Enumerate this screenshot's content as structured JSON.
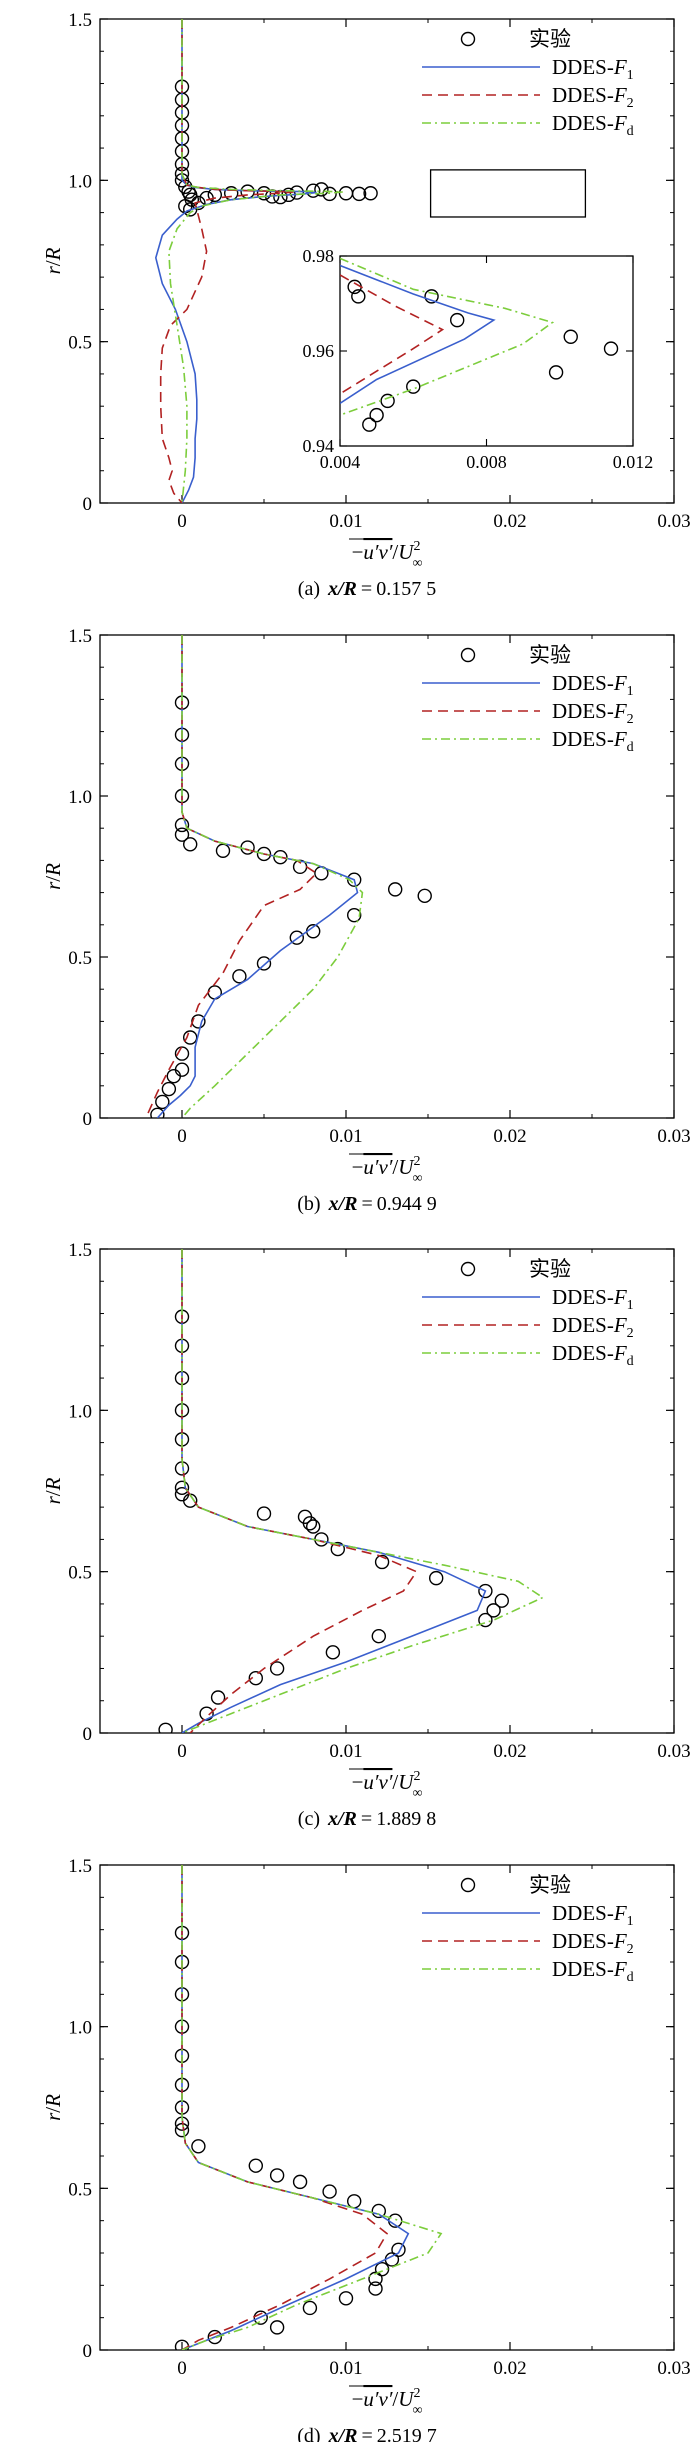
{
  "figure": {
    "legend": {
      "experiment": "实验",
      "f1": {
        "base": "DDES-",
        "var": "F",
        "sub": "1"
      },
      "f2": {
        "base": "DDES-",
        "var": "F",
        "sub": "2"
      },
      "fd": {
        "base": "DDES-",
        "var": "F",
        "sub": "d"
      }
    },
    "ylabel": {
      "a": "r",
      "slash": "/",
      "b": "R"
    },
    "xlabel": {
      "minus": "−",
      "uv": "u′v′",
      "slash": "/",
      "U": "U",
      "sup": "2",
      "sub": "∞"
    },
    "colors": {
      "f1": "#3a5fcd",
      "f2": "#b22222",
      "fd": "#7ccd3c",
      "axis": "#000000"
    }
  },
  "chart_data": [
    {
      "type": "line",
      "id": "a",
      "caption": {
        "label": "(a)",
        "var": "x/R",
        "eq": "=",
        "value": "0.157 5"
      },
      "xlim": [
        -0.005,
        0.03
      ],
      "ylim": [
        0,
        1.5
      ],
      "xticks": [
        "0",
        "0.01",
        "0.02",
        "0.03"
      ],
      "yticks": [
        "0",
        "0.5",
        "1.0",
        "1.5"
      ],
      "series": [
        {
          "name": "实验",
          "kind": "marker",
          "x": [
            0,
            0,
            0,
            0,
            0,
            0,
            0,
            0,
            0,
            0.0002,
            0.0004,
            0.0005,
            0.0006,
            0.0002,
            0.0005,
            0.001,
            0.0015,
            0.002,
            0.003,
            0.004,
            0.005,
            0.0055,
            0.006,
            0.0065,
            0.007,
            0.008,
            0.0085,
            0.009,
            0.01,
            0.0108,
            0.0115
          ],
          "y": [
            1.29,
            1.25,
            1.21,
            1.17,
            1.13,
            1.09,
            1.05,
            1.02,
            1.0,
            0.98,
            0.965,
            0.955,
            0.94,
            0.92,
            0.91,
            0.93,
            0.945,
            0.955,
            0.96,
            0.965,
            0.96,
            0.95,
            0.948,
            0.955,
            0.962,
            0.968,
            0.972,
            0.958,
            0.96,
            0.958,
            0.96
          ]
        },
        {
          "name": "DDES-F1",
          "kind": "solid",
          "x": [
            0,
            0,
            0,
            0,
            0.0003,
            0.0008,
            0.002,
            0.004,
            0.006,
            0.0075,
            0.0082,
            0.0074,
            0.005,
            0.003,
            0.0015,
            0.0003,
            -0.0003,
            -0.0012,
            -0.0016,
            -0.0012,
            -0.0004,
            0.0003,
            0.0008,
            0.0009,
            0.0009,
            0.0008,
            0.0008,
            0.0007,
            0.0004,
            0
          ],
          "y": [
            1.5,
            1.2,
            1.05,
            1.0,
            0.985,
            0.978,
            0.972,
            0.968,
            0.966,
            0.965,
            0.962,
            0.958,
            0.95,
            0.94,
            0.925,
            0.905,
            0.88,
            0.83,
            0.76,
            0.68,
            0.6,
            0.5,
            0.4,
            0.32,
            0.26,
            0.2,
            0.14,
            0.08,
            0.04,
            0
          ]
        },
        {
          "name": "DDES-F2",
          "kind": "dashed",
          "x": [
            0,
            0,
            0,
            0.0003,
            0.001,
            0.002,
            0.004,
            0.0055,
            0.0068,
            0.006,
            0.004,
            0.002,
            0.0008,
            0.0012,
            0.0015,
            0.0012,
            0.0003,
            -0.0007,
            -0.0012,
            -0.0013,
            -0.0013,
            -0.0012,
            -0.0008,
            -0.0006,
            -0.0008,
            -0.0005,
            0
          ],
          "y": [
            1.5,
            1.2,
            1.02,
            0.985,
            0.978,
            0.972,
            0.968,
            0.966,
            0.964,
            0.96,
            0.955,
            0.945,
            0.93,
            0.85,
            0.78,
            0.7,
            0.6,
            0.55,
            0.48,
            0.4,
            0.3,
            0.2,
            0.14,
            0.1,
            0.07,
            0.03,
            0
          ]
        },
        {
          "name": "DDES-Fd",
          "kind": "dashdot",
          "x": [
            0,
            0,
            0,
            0.0003,
            0.001,
            0.003,
            0.006,
            0.0085,
            0.0098,
            0.009,
            0.006,
            0.003,
            0.0012,
            0.0005,
            -0.0003,
            -0.0008,
            -0.0007,
            -0.0003,
            0.0001,
            0.0003,
            0.0003,
            0.0002,
            0
          ],
          "y": [
            1.5,
            1.2,
            1.02,
            0.985,
            0.978,
            0.972,
            0.968,
            0.966,
            0.964,
            0.96,
            0.955,
            0.94,
            0.92,
            0.9,
            0.85,
            0.78,
            0.68,
            0.55,
            0.42,
            0.3,
            0.2,
            0.1,
            0
          ]
        }
      ],
      "inset": {
        "xlim": [
          0.004,
          0.012
        ],
        "ylim": [
          0.94,
          0.98
        ],
        "xticks": [
          "0.004",
          "0.008",
          "0.012"
        ],
        "yticks": [
          "0.94",
          "0.96",
          "0.98"
        ],
        "series": [
          {
            "name": "实验",
            "kind": "marker",
            "x": [
              0.0045,
              0.0048,
              0.005,
              0.0053,
              0.006,
              0.0065,
              0.0072,
              0.0099,
              0.0103,
              0.0114,
              0.0044
            ],
            "y": [
              0.9715,
              0.9445,
              0.9465,
              0.9495,
              0.9525,
              0.9715,
              0.9665,
              0.9555,
              0.963,
              0.9605,
              0.9735
            ]
          },
          {
            "name": "DDES-F1",
            "kind": "solid",
            "x": [
              0.004,
              0.006,
              0.0075,
              0.0082,
              0.0074,
              0.005,
              0.004
            ],
            "y": [
              0.978,
              0.972,
              0.968,
              0.9665,
              0.9625,
              0.954,
              0.949
            ]
          },
          {
            "name": "DDES-F2",
            "kind": "dashed",
            "x": [
              0.004,
              0.0055,
              0.0068,
              0.006,
              0.004
            ],
            "y": [
              0.976,
              0.9695,
              0.9645,
              0.9605,
              0.951
            ]
          },
          {
            "name": "DDES-Fd",
            "kind": "dashdot",
            "x": [
              0.004,
              0.006,
              0.0085,
              0.0098,
              0.009,
              0.006,
              0.004
            ],
            "y": [
              0.9795,
              0.973,
              0.969,
              0.966,
              0.9615,
              0.952,
              0.9465
            ]
          }
        ]
      }
    },
    {
      "type": "line",
      "id": "b",
      "caption": {
        "label": "(b)",
        "var": "x/R",
        "eq": "=",
        "value": "0.944 9"
      },
      "xlim": [
        -0.005,
        0.03
      ],
      "ylim": [
        0,
        1.5
      ],
      "xticks": [
        "0",
        "0.01",
        "0.02",
        "0.03"
      ],
      "yticks": [
        "0",
        "0.5",
        "1.0",
        "1.5"
      ],
      "series": [
        {
          "name": "实验",
          "kind": "marker",
          "x": [
            0,
            0,
            0,
            0,
            0,
            0,
            0.0005,
            0.0025,
            0.004,
            0.005,
            0.006,
            0.0072,
            0.0085,
            0.0105,
            0.013,
            0.0148,
            0.0105,
            0.008,
            0.007,
            0.005,
            0.0035,
            0.002,
            0.001,
            0.0005,
            0,
            0,
            -0.0005,
            -0.0008,
            -0.0012,
            -0.0015
          ],
          "y": [
            1.29,
            1.19,
            1.1,
            1.0,
            0.91,
            0.88,
            0.85,
            0.83,
            0.84,
            0.82,
            0.81,
            0.78,
            0.76,
            0.74,
            0.71,
            0.69,
            0.63,
            0.58,
            0.56,
            0.48,
            0.44,
            0.39,
            0.3,
            0.25,
            0.2,
            0.15,
            0.13,
            0.09,
            0.05,
            0.01
          ]
        },
        {
          "name": "DDES-F1",
          "kind": "solid",
          "x": [
            0,
            0,
            0.0003,
            0.002,
            0.005,
            0.008,
            0.0105,
            0.0107,
            0.009,
            0.006,
            0.004,
            0.002,
            0.0012,
            0.0008,
            0.0008,
            0.0005,
            -0.0001,
            -0.0008,
            -0.0015
          ],
          "y": [
            1.5,
            0.95,
            0.9,
            0.86,
            0.82,
            0.79,
            0.74,
            0.7,
            0.63,
            0.52,
            0.43,
            0.37,
            0.3,
            0.22,
            0.13,
            0.1,
            0.07,
            0.04,
            0
          ]
        },
        {
          "name": "DDES-F2",
          "kind": "dashed",
          "x": [
            0,
            0,
            0.0003,
            0.002,
            0.005,
            0.007,
            0.0082,
            0.0072,
            0.005,
            0.0035,
            0.0025,
            0.001,
            0.0003,
            -0.0008,
            -0.0015,
            -0.0022
          ],
          "y": [
            1.5,
            0.95,
            0.9,
            0.86,
            0.82,
            0.8,
            0.76,
            0.71,
            0.66,
            0.55,
            0.45,
            0.35,
            0.25,
            0.15,
            0.08,
            0
          ]
        },
        {
          "name": "DDES-Fd",
          "kind": "dashdot",
          "x": [
            0,
            0,
            0.0003,
            0.002,
            0.005,
            0.008,
            0.0102,
            0.011,
            0.0108,
            0.0095,
            0.008,
            0.006,
            0.004,
            0.002,
            0.0005,
            0
          ],
          "y": [
            1.5,
            0.95,
            0.9,
            0.86,
            0.82,
            0.79,
            0.74,
            0.7,
            0.62,
            0.5,
            0.4,
            0.3,
            0.2,
            0.1,
            0.03,
            0
          ]
        }
      ]
    },
    {
      "type": "line",
      "id": "c",
      "caption": {
        "label": "(c)",
        "var": "x/R",
        "eq": "=",
        "value": "1.889 8"
      },
      "xlim": [
        -0.005,
        0.03
      ],
      "ylim": [
        0,
        1.5
      ],
      "xticks": [
        "0",
        "0.01",
        "0.02",
        "0.03"
      ],
      "yticks": [
        "0",
        "0.5",
        "1.0",
        "1.5"
      ],
      "series": [
        {
          "name": "实验",
          "kind": "marker",
          "x": [
            0,
            0,
            0,
            0,
            0,
            0,
            0,
            0,
            0.0005,
            0.005,
            0.0075,
            0.0078,
            0.008,
            0.0085,
            0.0095,
            0.0122,
            0.0155,
            0.0185,
            0.0195,
            0.019,
            0.0185,
            0.012,
            0.0092,
            0.0058,
            0.0045,
            0.0022,
            0.0015,
            -0.001
          ],
          "y": [
            1.29,
            1.2,
            1.1,
            1.0,
            0.91,
            0.82,
            0.76,
            0.74,
            0.72,
            0.68,
            0.67,
            0.65,
            0.64,
            0.6,
            0.57,
            0.53,
            0.48,
            0.44,
            0.41,
            0.38,
            0.35,
            0.3,
            0.25,
            0.2,
            0.17,
            0.11,
            0.06,
            0.01
          ]
        },
        {
          "name": "DDES-F1",
          "kind": "solid",
          "x": [
            0,
            0,
            0.0002,
            0.001,
            0.004,
            0.008,
            0.012,
            0.016,
            0.0185,
            0.018,
            0.014,
            0.01,
            0.006,
            0.003,
            0.001,
            0
          ],
          "y": [
            1.5,
            0.85,
            0.76,
            0.7,
            0.64,
            0.6,
            0.56,
            0.5,
            0.44,
            0.38,
            0.3,
            0.22,
            0.15,
            0.08,
            0.03,
            0
          ]
        },
        {
          "name": "DDES-F2",
          "kind": "dashed",
          "x": [
            0,
            0,
            0.0002,
            0.001,
            0.004,
            0.008,
            0.012,
            0.0143,
            0.0135,
            0.011,
            0.008,
            0.005,
            0.003,
            0.0015,
            0.0005
          ],
          "y": [
            1.5,
            0.85,
            0.76,
            0.7,
            0.64,
            0.6,
            0.55,
            0.5,
            0.44,
            0.38,
            0.3,
            0.2,
            0.12,
            0.05,
            0
          ]
        },
        {
          "name": "DDES-Fd",
          "kind": "dashdot",
          "x": [
            0,
            0,
            0.0002,
            0.001,
            0.004,
            0.008,
            0.012,
            0.016,
            0.0205,
            0.022,
            0.019,
            0.014,
            0.01,
            0.006,
            0.003,
            0.001,
            0
          ],
          "y": [
            1.5,
            0.85,
            0.76,
            0.7,
            0.64,
            0.6,
            0.56,
            0.52,
            0.47,
            0.42,
            0.35,
            0.27,
            0.2,
            0.12,
            0.06,
            0.02,
            0
          ]
        }
      ]
    },
    {
      "type": "line",
      "id": "d",
      "caption": {
        "label": "(d)",
        "var": "x/R",
        "eq": "=",
        "value": "2.519 7"
      },
      "xlim": [
        -0.005,
        0.03
      ],
      "ylim": [
        0,
        1.5
      ],
      "xticks": [
        "0",
        "0.01",
        "0.02",
        "0.03"
      ],
      "yticks": [
        "0",
        "0.5",
        "1.0",
        "1.5"
      ],
      "series": [
        {
          "name": "实验",
          "kind": "marker",
          "x": [
            0,
            0,
            0,
            0,
            0,
            0,
            0,
            0,
            0,
            0.001,
            0.0045,
            0.0058,
            0.0072,
            0.009,
            0.0105,
            0.012,
            0.013,
            0.0132,
            0.0128,
            0.0122,
            0.0118,
            0.0118,
            0.01,
            0.0078,
            0.0058,
            0.0048,
            0.002,
            0
          ],
          "y": [
            1.29,
            1.2,
            1.1,
            1.0,
            0.91,
            0.82,
            0.75,
            0.7,
            0.68,
            0.63,
            0.57,
            0.54,
            0.52,
            0.49,
            0.46,
            0.43,
            0.4,
            0.31,
            0.28,
            0.25,
            0.22,
            0.19,
            0.16,
            0.13,
            0.07,
            0.1,
            0.04,
            0.01
          ]
        },
        {
          "name": "DDES-F1",
          "kind": "solid",
          "x": [
            0,
            0,
            0.0002,
            0.001,
            0.004,
            0.008,
            0.012,
            0.0138,
            0.0132,
            0.01,
            0.006,
            0.003,
            0.001,
            0
          ],
          "y": [
            1.5,
            0.72,
            0.64,
            0.58,
            0.52,
            0.47,
            0.42,
            0.36,
            0.3,
            0.22,
            0.13,
            0.06,
            0.02,
            0
          ]
        },
        {
          "name": "DDES-F2",
          "kind": "dashed",
          "x": [
            0,
            0,
            0.0002,
            0.001,
            0.004,
            0.008,
            0.011,
            0.0125,
            0.0118,
            0.009,
            0.006,
            0.003,
            0.001,
            0
          ],
          "y": [
            1.5,
            0.72,
            0.64,
            0.58,
            0.52,
            0.47,
            0.42,
            0.36,
            0.3,
            0.22,
            0.14,
            0.07,
            0.03,
            0
          ]
        },
        {
          "name": "DDES-Fd",
          "kind": "dashdot",
          "x": [
            0,
            0,
            0.0002,
            0.001,
            0.004,
            0.008,
            0.012,
            0.0158,
            0.015,
            0.011,
            0.007,
            0.004,
            0.0015,
            0
          ],
          "y": [
            1.5,
            0.72,
            0.64,
            0.58,
            0.52,
            0.47,
            0.42,
            0.36,
            0.3,
            0.22,
            0.14,
            0.07,
            0.03,
            0
          ]
        }
      ]
    }
  ]
}
